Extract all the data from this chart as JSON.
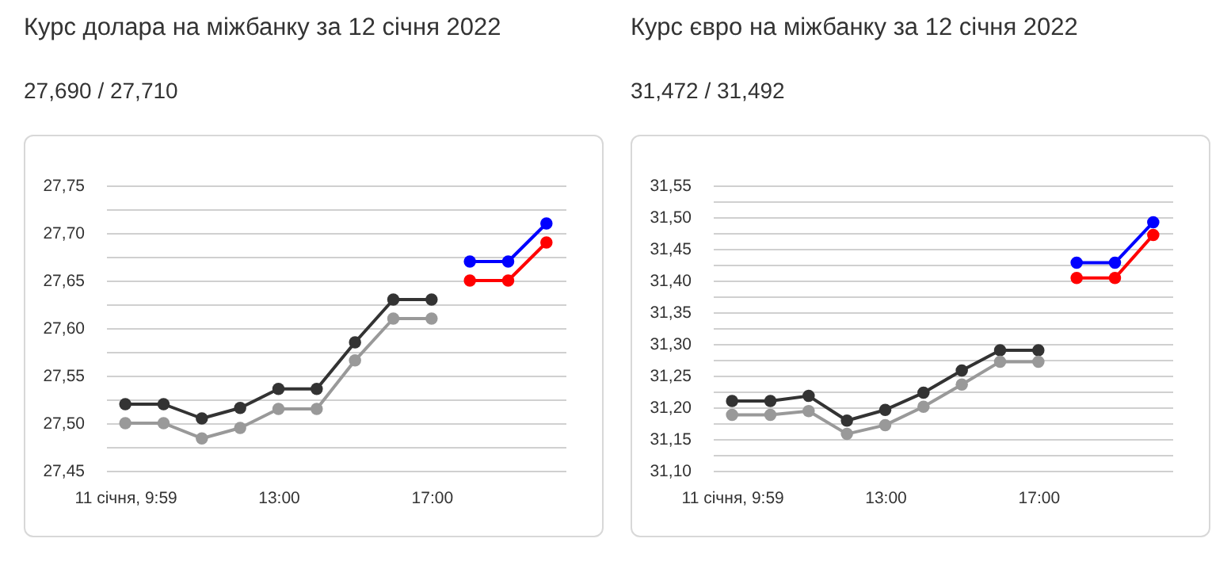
{
  "chart_data": [
    {
      "type": "line",
      "title": "Курс долара на міжбанку за 12 січня 2022",
      "subtitle": "27,690 / 27,710",
      "categories": [
        "11 січня, 9:59",
        null,
        null,
        null,
        "13:00",
        null,
        null,
        null,
        "17:00",
        null,
        null,
        null
      ],
      "series": [
        {
          "color": "#333333",
          "values": [
            27.52,
            27.52,
            27.505,
            27.516,
            27.536,
            27.536,
            27.585,
            27.63,
            27.63,
            null,
            null,
            null
          ]
        },
        {
          "color": "#999999",
          "values": [
            27.5,
            27.5,
            27.484,
            27.495,
            27.515,
            27.515,
            27.566,
            27.61,
            27.61,
            null,
            null,
            null
          ]
        },
        {
          "color": "#0000ff",
          "values": [
            null,
            null,
            null,
            null,
            null,
            null,
            null,
            null,
            null,
            27.67,
            27.67,
            27.71
          ]
        },
        {
          "color": "#ff0000",
          "values": [
            null,
            null,
            null,
            null,
            null,
            null,
            null,
            null,
            null,
            27.65,
            27.65,
            27.69
          ]
        }
      ],
      "ylim": [
        27.45,
        27.75
      ],
      "yticks": [
        {
          "value": 27.45,
          "label": "27,45"
        },
        {
          "value": 27.475,
          "label": null
        },
        {
          "value": 27.5,
          "label": "27,50"
        },
        {
          "value": 27.525,
          "label": null
        },
        {
          "value": 27.55,
          "label": "27,55"
        },
        {
          "value": 27.575,
          "label": null
        },
        {
          "value": 27.6,
          "label": "27,60"
        },
        {
          "value": 27.625,
          "label": null
        },
        {
          "value": 27.65,
          "label": "27,65"
        },
        {
          "value": 27.675,
          "label": null
        },
        {
          "value": 27.7,
          "label": "27,70"
        },
        {
          "value": 27.725,
          "label": null
        },
        {
          "value": 27.75,
          "label": "27,75"
        }
      ],
      "grid": true,
      "marker": "circle"
    },
    {
      "type": "line",
      "title": "Курс євро на міжбанку за 12 січня 2022",
      "subtitle": "31,472 / 31,492",
      "categories": [
        "11 січня, 9:59",
        null,
        null,
        null,
        "13:00",
        null,
        null,
        null,
        "17:00",
        null,
        null,
        null
      ],
      "series": [
        {
          "color": "#333333",
          "values": [
            31.21,
            31.21,
            31.218,
            31.179,
            31.196,
            31.223,
            31.258,
            31.29,
            31.29,
            null,
            null,
            null
          ]
        },
        {
          "color": "#999999",
          "values": [
            31.188,
            31.188,
            31.194,
            31.158,
            31.172,
            31.201,
            31.236,
            31.272,
            31.272,
            null,
            null,
            null
          ]
        },
        {
          "color": "#0000ff",
          "values": [
            null,
            null,
            null,
            null,
            null,
            null,
            null,
            null,
            null,
            31.428,
            31.428,
            31.492
          ]
        },
        {
          "color": "#ff0000",
          "values": [
            null,
            null,
            null,
            null,
            null,
            null,
            null,
            null,
            null,
            31.404,
            31.404,
            31.472
          ]
        }
      ],
      "ylim": [
        31.1,
        31.55
      ],
      "yticks": [
        {
          "value": 31.1,
          "label": "31,10"
        },
        {
          "value": 31.125,
          "label": null
        },
        {
          "value": 31.15,
          "label": "31,15"
        },
        {
          "value": 31.175,
          "label": null
        },
        {
          "value": 31.2,
          "label": "31,20"
        },
        {
          "value": 31.225,
          "label": null
        },
        {
          "value": 31.25,
          "label": "31,25"
        },
        {
          "value": 31.275,
          "label": null
        },
        {
          "value": 31.3,
          "label": "31,30"
        },
        {
          "value": 31.325,
          "label": null
        },
        {
          "value": 31.35,
          "label": "31,35"
        },
        {
          "value": 31.375,
          "label": null
        },
        {
          "value": 31.4,
          "label": "31,40"
        },
        {
          "value": 31.425,
          "label": null
        },
        {
          "value": 31.45,
          "label": "31,45"
        },
        {
          "value": 31.475,
          "label": null
        },
        {
          "value": 31.5,
          "label": "31,50"
        },
        {
          "value": 31.525,
          "label": null
        },
        {
          "value": 31.55,
          "label": "31,55"
        }
      ],
      "grid": true,
      "marker": "circle"
    }
  ]
}
